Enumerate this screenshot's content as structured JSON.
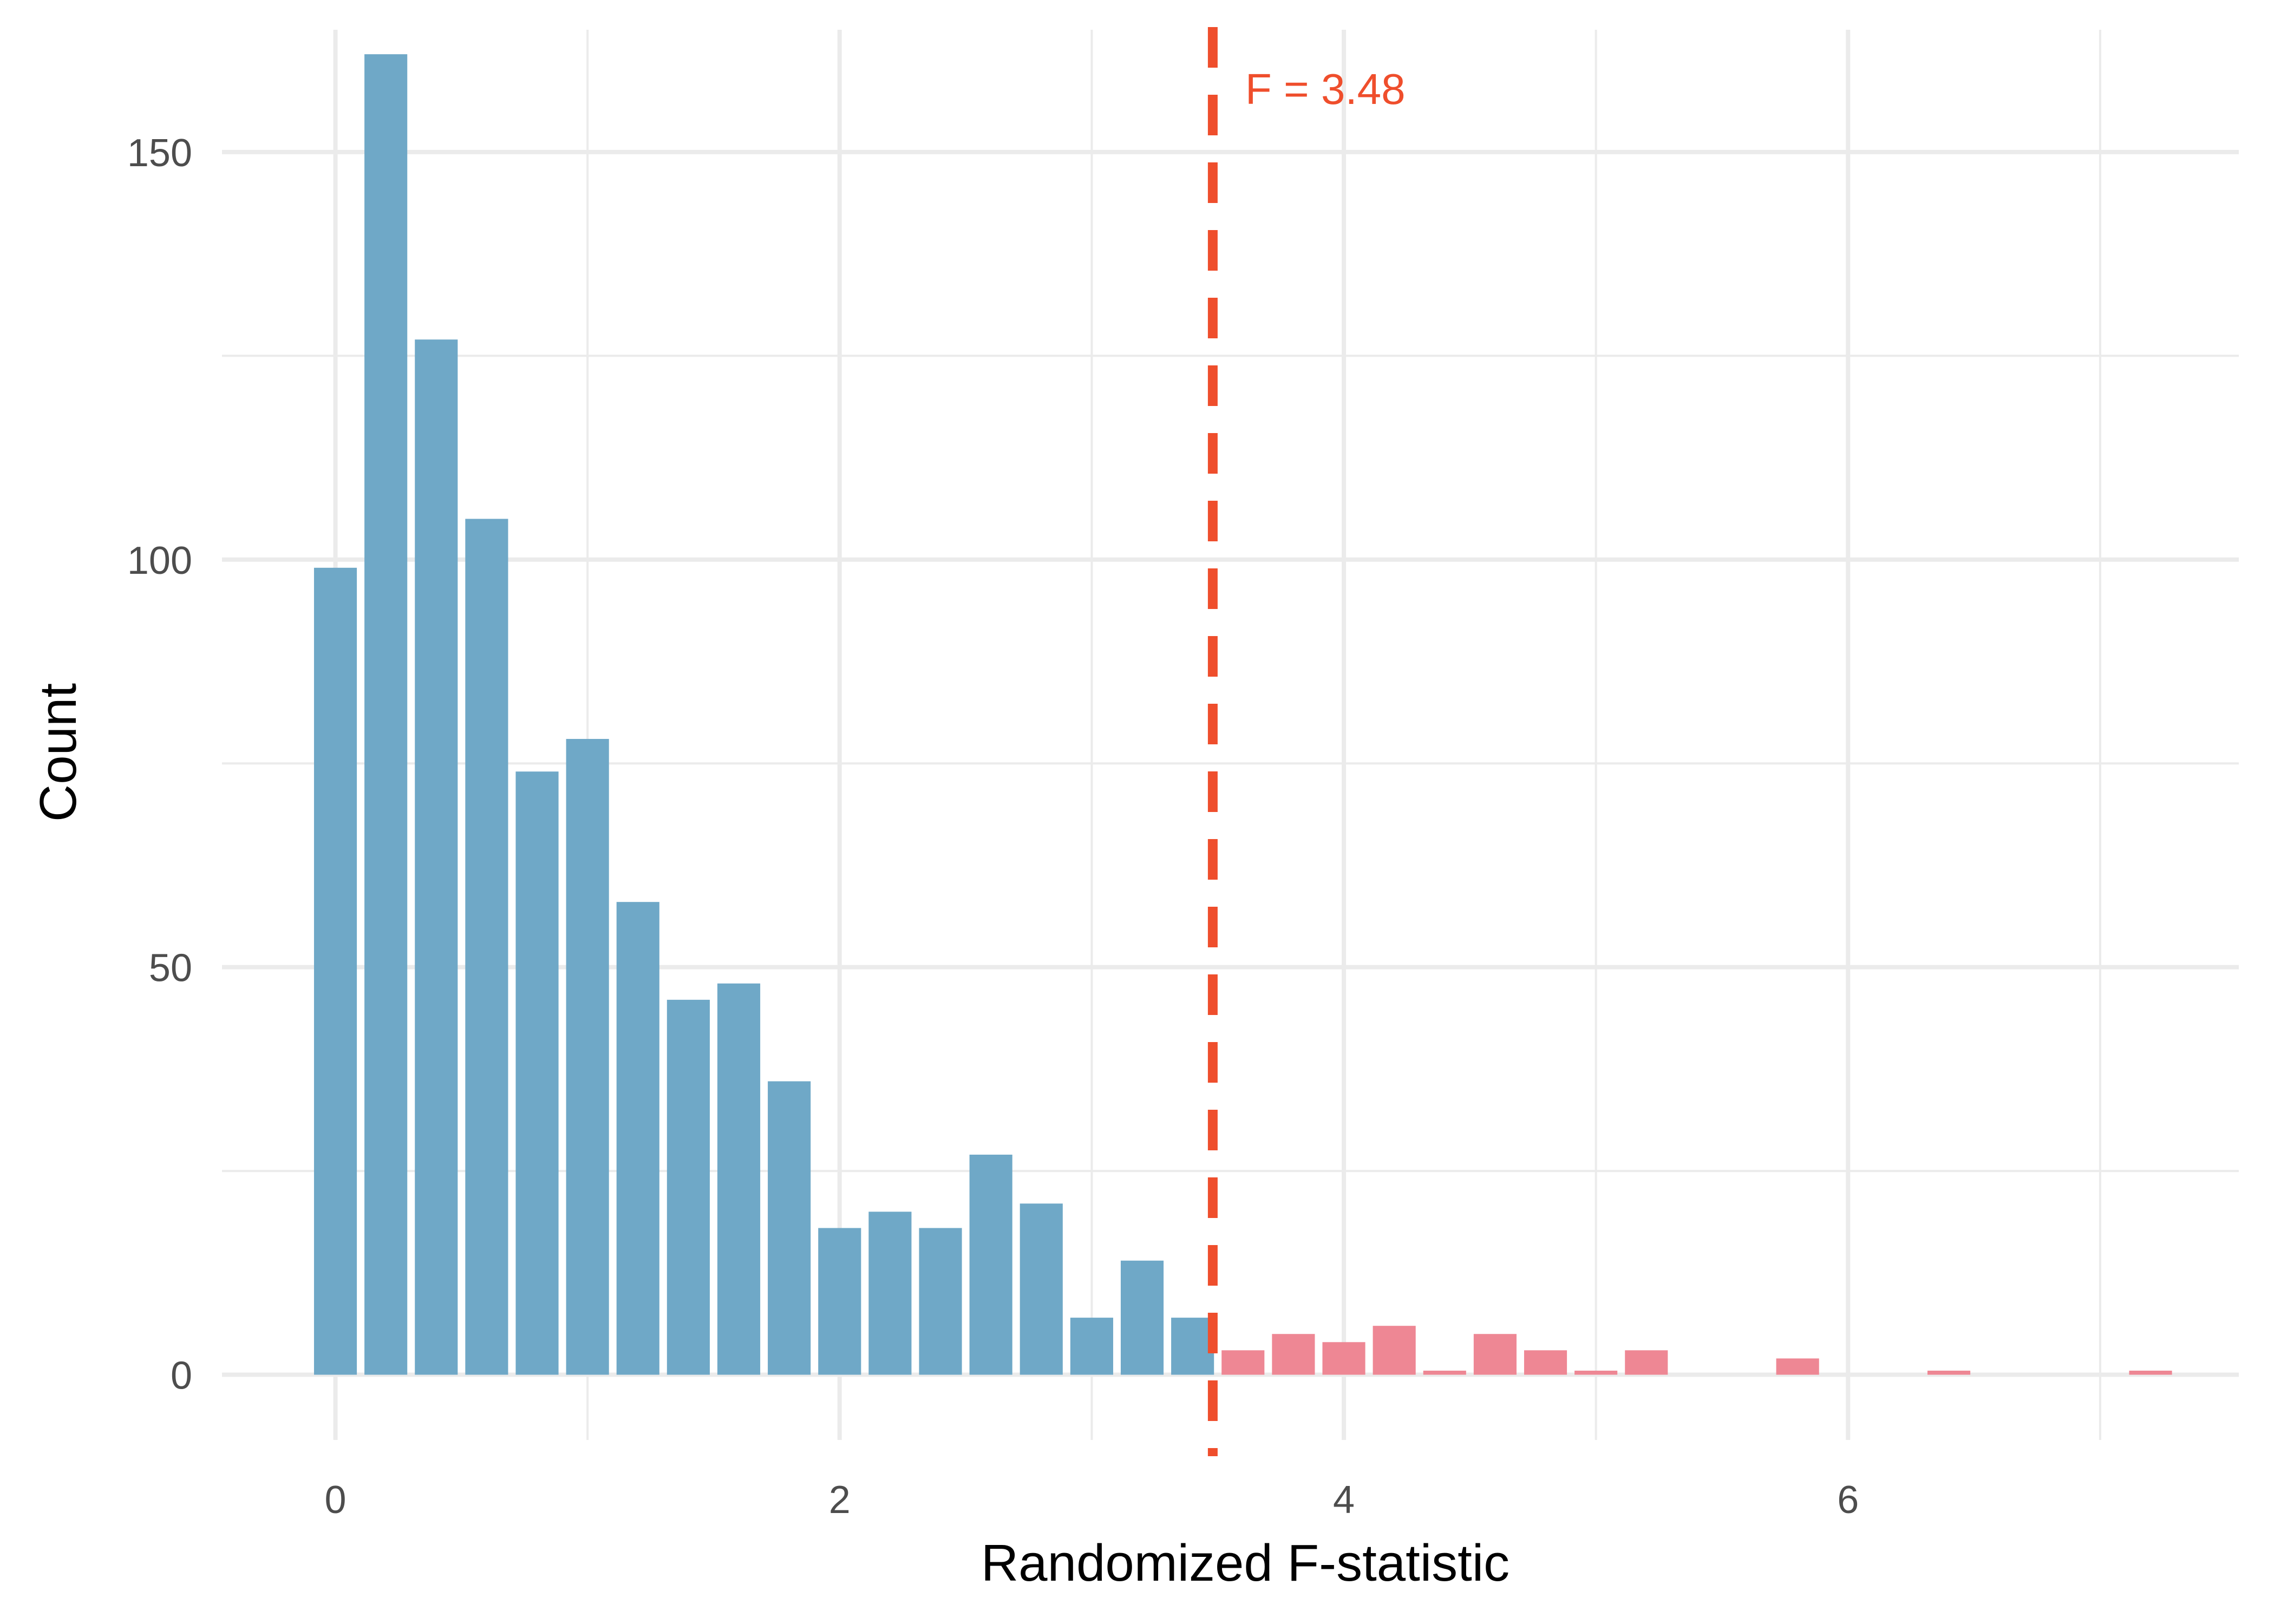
{
  "chart_data": {
    "type": "bar",
    "title": "",
    "xlabel": "Randomized F-statistic",
    "ylabel": "Count",
    "xlim": [
      -0.45,
      7.55
    ],
    "ylim": [
      -8,
      165
    ],
    "x_ticks": [
      0,
      2,
      4,
      6
    ],
    "x_tick_labels": [
      "0",
      "2",
      "4",
      "6"
    ],
    "x_minor_ticks": [
      1,
      3,
      5,
      7
    ],
    "y_ticks": [
      0,
      50,
      100,
      150
    ],
    "y_tick_labels": [
      "0",
      "50",
      "100",
      "150"
    ],
    "y_minor_ticks": [
      25,
      75,
      125
    ],
    "grid": true,
    "bin_width": 0.2,
    "bins": [
      {
        "x": 0.0,
        "count": 99
      },
      {
        "x": 0.2,
        "count": 162
      },
      {
        "x": 0.4,
        "count": 127
      },
      {
        "x": 0.6,
        "count": 105
      },
      {
        "x": 0.8,
        "count": 74
      },
      {
        "x": 1.0,
        "count": 78
      },
      {
        "x": 1.2,
        "count": 58
      },
      {
        "x": 1.4,
        "count": 46
      },
      {
        "x": 1.6,
        "count": 48
      },
      {
        "x": 1.8,
        "count": 36
      },
      {
        "x": 2.0,
        "count": 18
      },
      {
        "x": 2.2,
        "count": 20
      },
      {
        "x": 2.4,
        "count": 18
      },
      {
        "x": 2.6,
        "count": 27
      },
      {
        "x": 2.8,
        "count": 21
      },
      {
        "x": 3.0,
        "count": 7
      },
      {
        "x": 3.2,
        "count": 14
      },
      {
        "x": 3.4,
        "count": 7
      },
      {
        "x": 3.6,
        "count": 3
      },
      {
        "x": 3.8,
        "count": 5
      },
      {
        "x": 4.0,
        "count": 4
      },
      {
        "x": 4.2,
        "count": 6
      },
      {
        "x": 4.4,
        "count": 0.5
      },
      {
        "x": 4.6,
        "count": 5
      },
      {
        "x": 4.8,
        "count": 3
      },
      {
        "x": 5.0,
        "count": 0.5
      },
      {
        "x": 5.2,
        "count": 3
      },
      {
        "x": 5.8,
        "count": 2
      },
      {
        "x": 6.4,
        "count": 0.5
      },
      {
        "x": 7.2,
        "count": 0.5
      }
    ],
    "threshold": {
      "value": 3.48,
      "label": "F = 3.48",
      "color": "#ef4e2c"
    },
    "colors": {
      "below": "#6fa8c7",
      "above": "#ee8794",
      "grid": "#ebebeb"
    }
  }
}
